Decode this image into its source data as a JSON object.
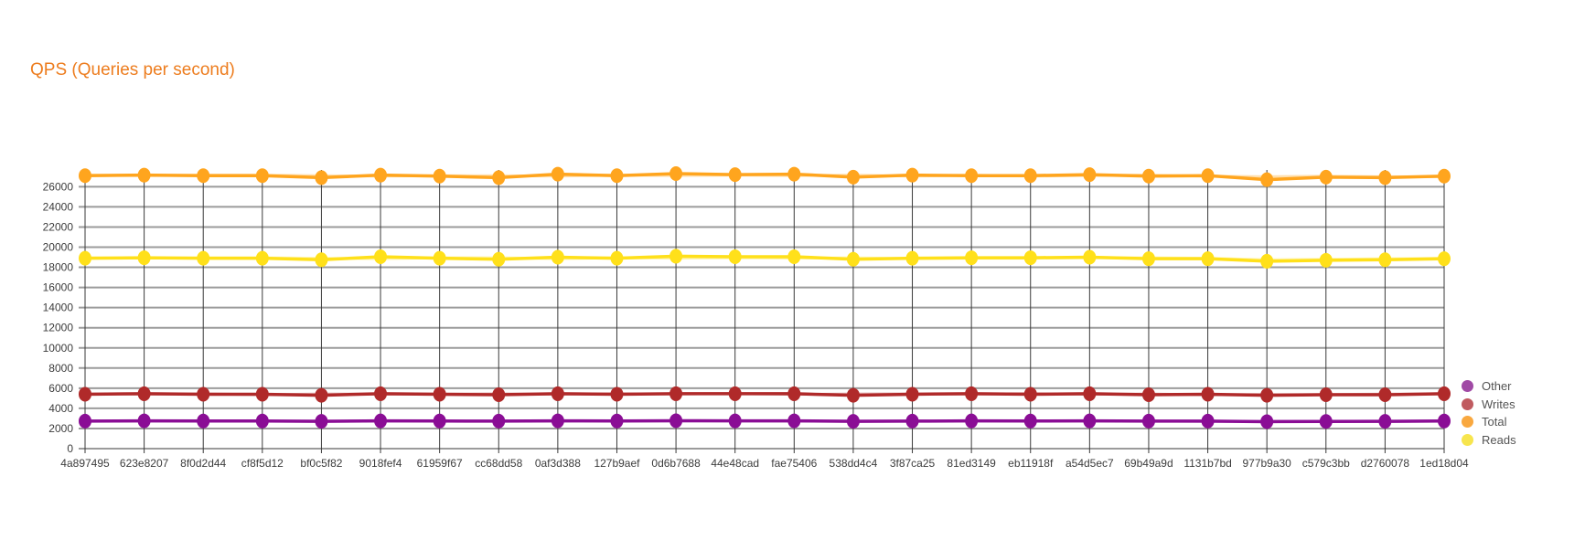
{
  "title": {
    "text": "QPS (Queries per second)",
    "color": "#ED7D1F"
  },
  "legend": {
    "position": "right",
    "items": [
      {
        "label": "Other",
        "swatch_color": "#A04AA5"
      },
      {
        "label": "Writes",
        "swatch_color": "#C05B60"
      },
      {
        "label": "Total",
        "swatch_color": "#F9A83F"
      },
      {
        "label": "Reads",
        "swatch_color": "#F7E54E"
      }
    ]
  },
  "chart_data": {
    "type": "line",
    "title": "QPS (Queries per second)",
    "xlabel": "",
    "ylabel": "",
    "ylim": [
      0,
      27800
    ],
    "yticks": [
      0,
      2000,
      4000,
      6000,
      8000,
      10000,
      12000,
      14000,
      16000,
      18000,
      20000,
      22000,
      24000,
      26000
    ],
    "grid": true,
    "legend_position": "right",
    "categories": [
      "4a897495",
      "623e8207",
      "8f0d2d44",
      "cf8f5d12",
      "bf0c5f82",
      "9018fef4",
      "61959f67",
      "cc68dd58",
      "0af3d388",
      "127b9aef",
      "0d6b7688",
      "44e48cad",
      "fae75406",
      "538dd4c4",
      "3f87ca25",
      "81ed3149",
      "eb11918f",
      "a54d5ec7",
      "69b49a9d",
      "1131b7bd",
      "977b9a30",
      "c579c3bb",
      "d2760078",
      "1ed18d04"
    ],
    "series": [
      {
        "name": "Other",
        "color": "#8A0D95",
        "legend_color": "#A04AA5",
        "values": [
          2730,
          2760,
          2740,
          2740,
          2710,
          2750,
          2740,
          2730,
          2760,
          2740,
          2770,
          2750,
          2760,
          2710,
          2730,
          2750,
          2740,
          2750,
          2730,
          2730,
          2680,
          2700,
          2710,
          2740
        ],
        "ghost_values": [
          2745,
          2735,
          2750,
          2720,
          2745,
          2730,
          2750,
          2745,
          2735,
          2760,
          2740,
          2765,
          2730,
          2745,
          2750,
          2735,
          2755,
          2735,
          2745,
          2700,
          2720,
          2715,
          2730,
          2750
        ]
      },
      {
        "name": "Writes",
        "color": "#B02A2A",
        "legend_color": "#C05B60",
        "values": [
          5400,
          5450,
          5400,
          5400,
          5300,
          5450,
          5400,
          5350,
          5450,
          5400,
          5450,
          5450,
          5450,
          5300,
          5400,
          5450,
          5400,
          5450,
          5350,
          5400,
          5300,
          5350,
          5350,
          5450
        ],
        "ghost_values": [
          5430,
          5400,
          5440,
          5350,
          5430,
          5400,
          5420,
          5440,
          5400,
          5450,
          5420,
          5470,
          5380,
          5430,
          5440,
          5410,
          5460,
          5390,
          5430,
          5340,
          5380,
          5370,
          5420,
          5430
        ]
      },
      {
        "name": "Total",
        "color": "#FFA51E",
        "legend_color": "#F9A83F",
        "values": [
          27100,
          27150,
          27100,
          27100,
          26900,
          27150,
          27050,
          26900,
          27250,
          27100,
          27300,
          27200,
          27250,
          26950,
          27150,
          27100,
          27100,
          27200,
          27050,
          27100,
          26700,
          26950,
          26900,
          27050
        ],
        "ghost_values": [
          27150,
          27100,
          27150,
          27150,
          27100,
          27050,
          27100,
          27100,
          27050,
          27150,
          27100,
          27150,
          27100,
          27150,
          27050,
          27150,
          27050,
          27100,
          27150,
          27050,
          27000,
          27050,
          27000,
          27000
        ]
      },
      {
        "name": "Reads",
        "color": "#FFE01A",
        "legend_color": "#F7E54E",
        "values": [
          18900,
          18950,
          18900,
          18900,
          18750,
          19050,
          18900,
          18800,
          19000,
          18900,
          19100,
          19050,
          19050,
          18800,
          18900,
          18950,
          18950,
          19000,
          18850,
          18850,
          18600,
          18700,
          18750,
          18850
        ],
        "ghost_values": [
          18950,
          18900,
          18950,
          18950,
          18900,
          18850,
          18950,
          18950,
          18850,
          18950,
          18900,
          18950,
          18900,
          18950,
          18850,
          18900,
          18900,
          18950,
          18950,
          18900,
          18750,
          18800,
          18850,
          18900
        ]
      }
    ]
  }
}
